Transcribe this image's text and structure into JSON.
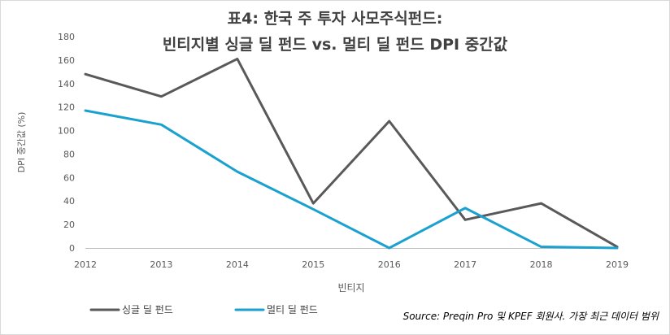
{
  "chart_data": {
    "type": "line",
    "title_line1": "표4: 한국 주 투자 사모주식펀드:",
    "title_line2": "빈티지별 싱글 딜 펀드 vs. 멀티 딜 펀드 DPI 중간값",
    "xlabel": "빈티지",
    "ylabel": "DPI 중간값 (%)",
    "x": [
      "2012",
      "2013",
      "2014",
      "2015",
      "2016",
      "2017",
      "2018",
      "2019"
    ],
    "ylim": [
      0,
      180
    ],
    "yticks": [
      "0",
      "20",
      "40",
      "60",
      "80",
      "100",
      "120",
      "140",
      "160",
      "180"
    ],
    "grid": false,
    "legend_position": "bottom-left",
    "series": [
      {
        "name": "싱글 딜 펀드",
        "color": "#595959",
        "values": [
          148,
          129,
          161,
          38,
          108,
          24,
          38,
          1
        ]
      },
      {
        "name": "멀티 딜 펀드",
        "color": "#1ba1d0",
        "values": [
          117,
          105,
          65,
          33,
          0,
          34,
          1,
          0
        ]
      }
    ],
    "source": "Source: Preqin Pro 및 KPEF 회원사. 가장 최근 데이터 범위"
  }
}
